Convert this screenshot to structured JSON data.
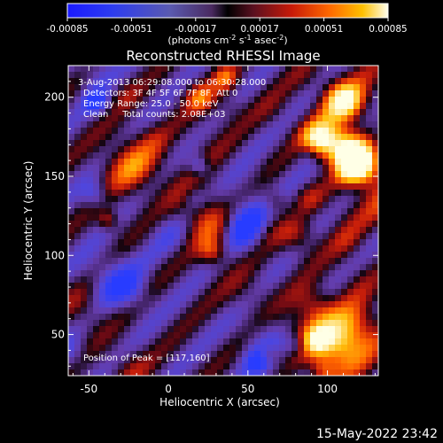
{
  "chart_data": {
    "type": "heatmap",
    "title": "Reconstructed RHESSI Image",
    "colorbar": {
      "ticks": [
        "-0.00085",
        "-0.00051",
        "-0.00017",
        "0.00017",
        "0.00051",
        "0.00085"
      ],
      "range": [
        -0.00085,
        0.00085
      ],
      "unit_text": "(photons cm",
      "unit_sup1": "-2",
      "unit_mid": " s",
      "unit_sup2": "-1",
      "unit_end": " asec",
      "unit_sup3": "-2",
      "unit_close": ")"
    },
    "xlabel": "Heliocentric X (arcsec)",
    "ylabel": "Heliocentric Y (arcsec)",
    "xlim": [
      -63,
      132
    ],
    "ylim": [
      24,
      220
    ],
    "xticks": [
      -50,
      0,
      50,
      100
    ],
    "yticks": [
      50,
      100,
      150,
      200
    ],
    "annotations": [
      "3-Aug-2013 06:29:08.000 to 06:30:28.000",
      "Detectors: 3F 4F 5F 6F 7F 8F, Att 0",
      "Energy Range: 25.0 - 50.0 keV",
      "Clean     Total counts: 2.08E+03"
    ],
    "peak_label": "Position of Peak = [117,160]",
    "peak": [
      117,
      160
    ]
  },
  "timestamp": "15-May-2022 23:42"
}
